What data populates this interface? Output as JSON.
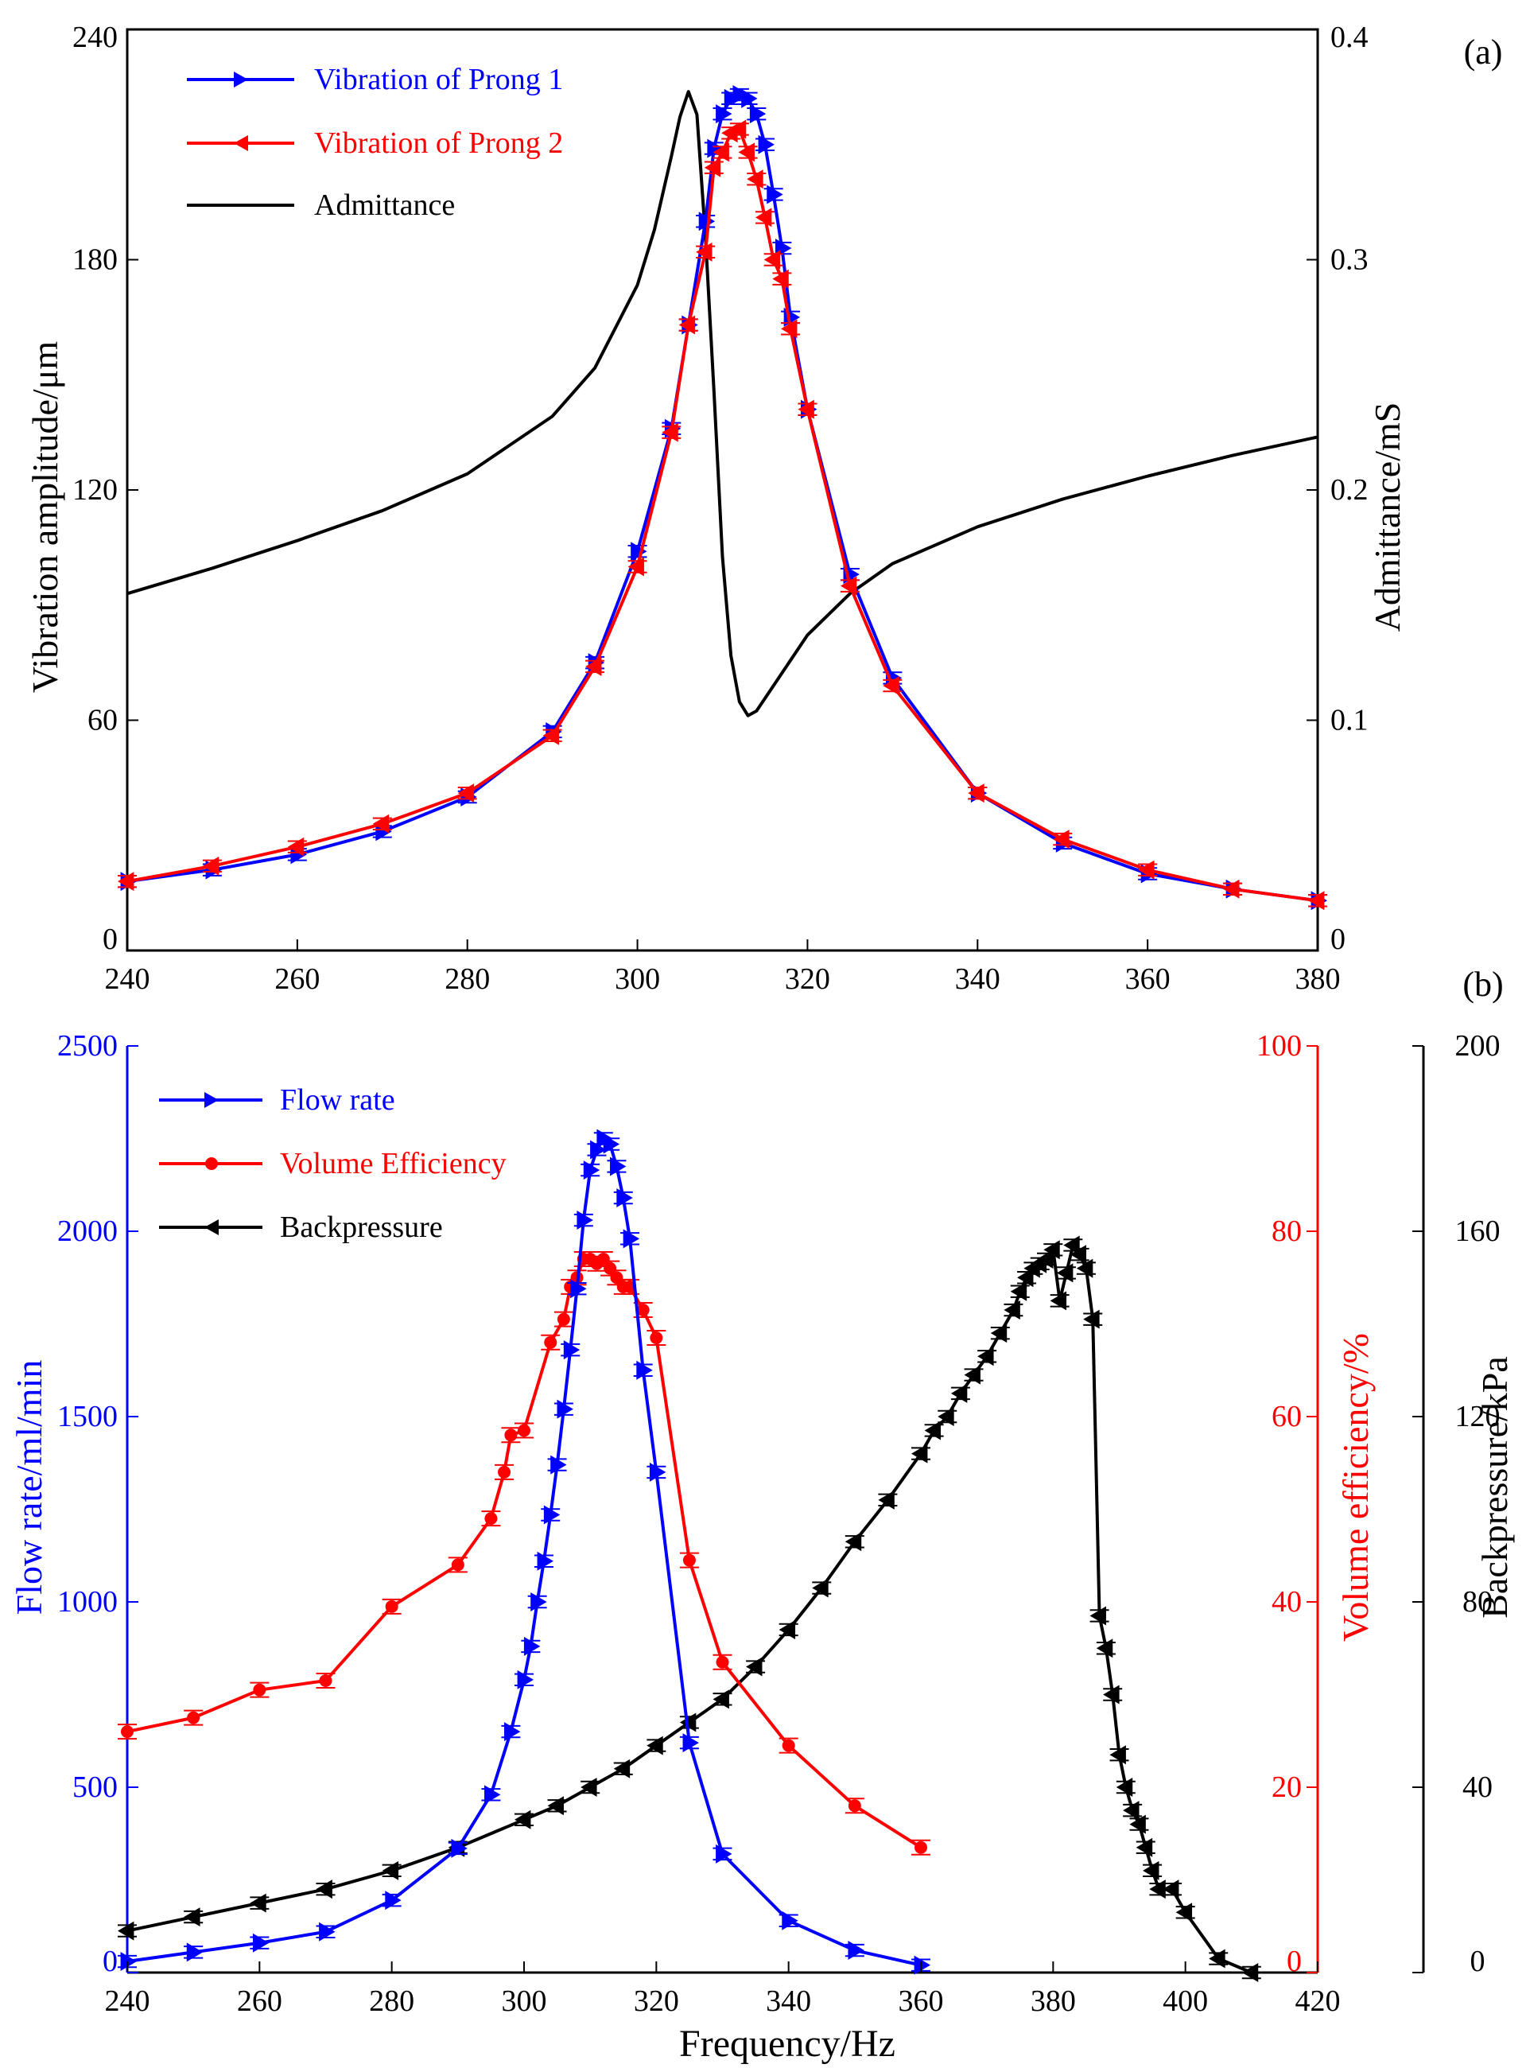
{
  "chart_data": [
    {
      "panel_label": "(a)",
      "type": "line",
      "x_axis": {
        "ticks": [
          "240",
          "260",
          "280",
          "300",
          "320",
          "340",
          "360",
          "380"
        ],
        "range": [
          240,
          380
        ]
      },
      "y_left": {
        "label": "Vibration amplitude/μm",
        "ticks": [
          "0",
          "60",
          "120",
          "180",
          "240"
        ],
        "range": [
          0,
          240
        ]
      },
      "y_right": {
        "label": "Admittance/mS",
        "ticks": [
          "0",
          "0.1",
          "0.2",
          "0.3",
          "0.4"
        ],
        "range": [
          0,
          0.4
        ]
      },
      "series": [
        {
          "name": "Vibration of Prong 1",
          "axis": "left",
          "color": "#0000ff",
          "marker": "triangle-right",
          "x": [
            240,
            250,
            260,
            270,
            280,
            290,
            295,
            300,
            304,
            306,
            308,
            309,
            310,
            311,
            312,
            313,
            314,
            315,
            316,
            317,
            318,
            320,
            325,
            330,
            340,
            350,
            360,
            370,
            380
          ],
          "y": [
            18,
            21,
            25,
            31,
            40,
            57,
            75,
            104,
            136,
            163,
            190,
            209,
            218,
            222,
            223,
            222,
            218,
            210,
            197,
            183,
            165,
            141,
            98,
            71,
            41,
            28,
            20,
            16,
            13
          ]
        },
        {
          "name": "Vibration of Prong 2",
          "axis": "left",
          "color": "#ff0000",
          "marker": "triangle-left",
          "x": [
            240,
            250,
            260,
            270,
            280,
            290,
            295,
            300,
            304,
            306,
            308,
            309,
            310,
            311,
            312,
            313,
            314,
            315,
            316,
            317,
            318,
            320,
            325,
            330,
            340,
            350,
            360,
            370,
            380
          ],
          "y": [
            18,
            22,
            27,
            33,
            41,
            56,
            74,
            100,
            135,
            163,
            182,
            204,
            208,
            213,
            214,
            208,
            201,
            191,
            180,
            175,
            162,
            141,
            95,
            69,
            41,
            29,
            21,
            16,
            13
          ]
        },
        {
          "name": "Admittance",
          "axis": "right",
          "color": "#000000",
          "x": [
            240,
            250,
            260,
            270,
            280,
            290,
            295,
            300,
            302,
            304,
            305,
            306,
            307,
            308,
            309,
            310,
            311,
            312,
            313,
            314,
            316,
            318,
            320,
            325,
            330,
            340,
            350,
            360,
            370,
            380
          ],
          "y": [
            0.155,
            0.166,
            0.178,
            0.191,
            0.207,
            0.232,
            0.253,
            0.289,
            0.313,
            0.345,
            0.362,
            0.373,
            0.363,
            0.31,
            0.243,
            0.171,
            0.128,
            0.108,
            0.102,
            0.104,
            0.115,
            0.126,
            0.137,
            0.155,
            0.168,
            0.184,
            0.196,
            0.206,
            0.215,
            0.223
          ]
        }
      ]
    },
    {
      "panel_label": "(b)",
      "type": "line",
      "x_axis": {
        "label": "Frequency/Hz",
        "ticks": [
          "240",
          "260",
          "280",
          "300",
          "320",
          "340",
          "360",
          "380",
          "400",
          "420"
        ],
        "range": [
          240,
          420
        ]
      },
      "y_left": {
        "label": "Flow rate/ml/min",
        "ticks": [
          "0",
          "500",
          "1000",
          "1500",
          "2000",
          "2500"
        ],
        "range": [
          0,
          2500
        ],
        "color": "#0000ff"
      },
      "y_right": {
        "label": "Volume efficiency/%",
        "ticks": [
          "0",
          "20",
          "40",
          "60",
          "80",
          "100"
        ],
        "range": [
          0,
          100
        ],
        "color": "#ff0000"
      },
      "y_right2": {
        "label": "Backpressure/kPa",
        "ticks": [
          "0",
          "40",
          "80",
          "120",
          "160",
          "200"
        ],
        "range": [
          0,
          200
        ],
        "color": "#000000"
      },
      "series": [
        {
          "name": "Flow rate",
          "axis": "left",
          "color": "#0000ff",
          "marker": "triangle-right",
          "x": [
            240,
            250,
            260,
            270,
            280,
            290,
            295,
            298,
            300,
            301,
            302,
            303,
            304,
            305,
            306,
            307,
            308,
            309,
            310,
            311,
            312,
            313,
            314,
            315,
            316,
            318,
            320,
            325,
            330,
            340,
            350,
            360
          ],
          "y": [
            30,
            55,
            80,
            110,
            195,
            335,
            480,
            650,
            790,
            880,
            1000,
            1110,
            1235,
            1370,
            1520,
            1680,
            1845,
            2030,
            2165,
            2220,
            2250,
            2235,
            2175,
            2090,
            1980,
            1625,
            1350,
            620,
            320,
            140,
            60,
            20
          ]
        },
        {
          "name": "Volume Efficiency",
          "axis": "right",
          "color": "#ff0000",
          "marker": "circle",
          "x": [
            240,
            250,
            260,
            270,
            280,
            290,
            295,
            297,
            298,
            300,
            304,
            306,
            307,
            308,
            309,
            310,
            311,
            312,
            313,
            314,
            315,
            316,
            318,
            320,
            325,
            330,
            340,
            350,
            360
          ],
          "y": [
            26,
            27.5,
            30.5,
            31.5,
            39.5,
            44,
            49,
            54,
            58,
            58.5,
            68,
            70.5,
            74,
            75,
            77,
            77,
            76.5,
            77,
            76,
            75,
            74,
            74,
            71.5,
            68.5,
            44.5,
            33.5,
            24.5,
            18,
            13.5
          ]
        },
        {
          "name": "Backpressure",
          "axis": "right2",
          "color": "#000000",
          "marker": "triangle-left",
          "x": [
            240,
            250,
            260,
            270,
            280,
            290,
            300,
            305,
            310,
            315,
            320,
            325,
            330,
            335,
            340,
            345,
            350,
            355,
            360,
            362,
            364,
            366,
            368,
            370,
            372,
            374,
            375,
            376,
            377,
            378,
            379,
            380,
            381,
            382,
            383,
            384,
            385,
            386,
            387,
            388,
            389,
            390,
            391,
            392,
            393,
            394,
            395,
            396,
            398,
            400,
            405,
            410
          ],
          "y": [
            9,
            12,
            15,
            18,
            22,
            27,
            33,
            36,
            40,
            44,
            49,
            54,
            59,
            66,
            74,
            83,
            93,
            102,
            112,
            117,
            120,
            125,
            129,
            133,
            138,
            143,
            147,
            150,
            152,
            153,
            154,
            156,
            145,
            151,
            157,
            155,
            152,
            141,
            77,
            70,
            60,
            47,
            40,
            35,
            32,
            27,
            22,
            18,
            18,
            13,
            3,
            0
          ]
        }
      ]
    }
  ]
}
